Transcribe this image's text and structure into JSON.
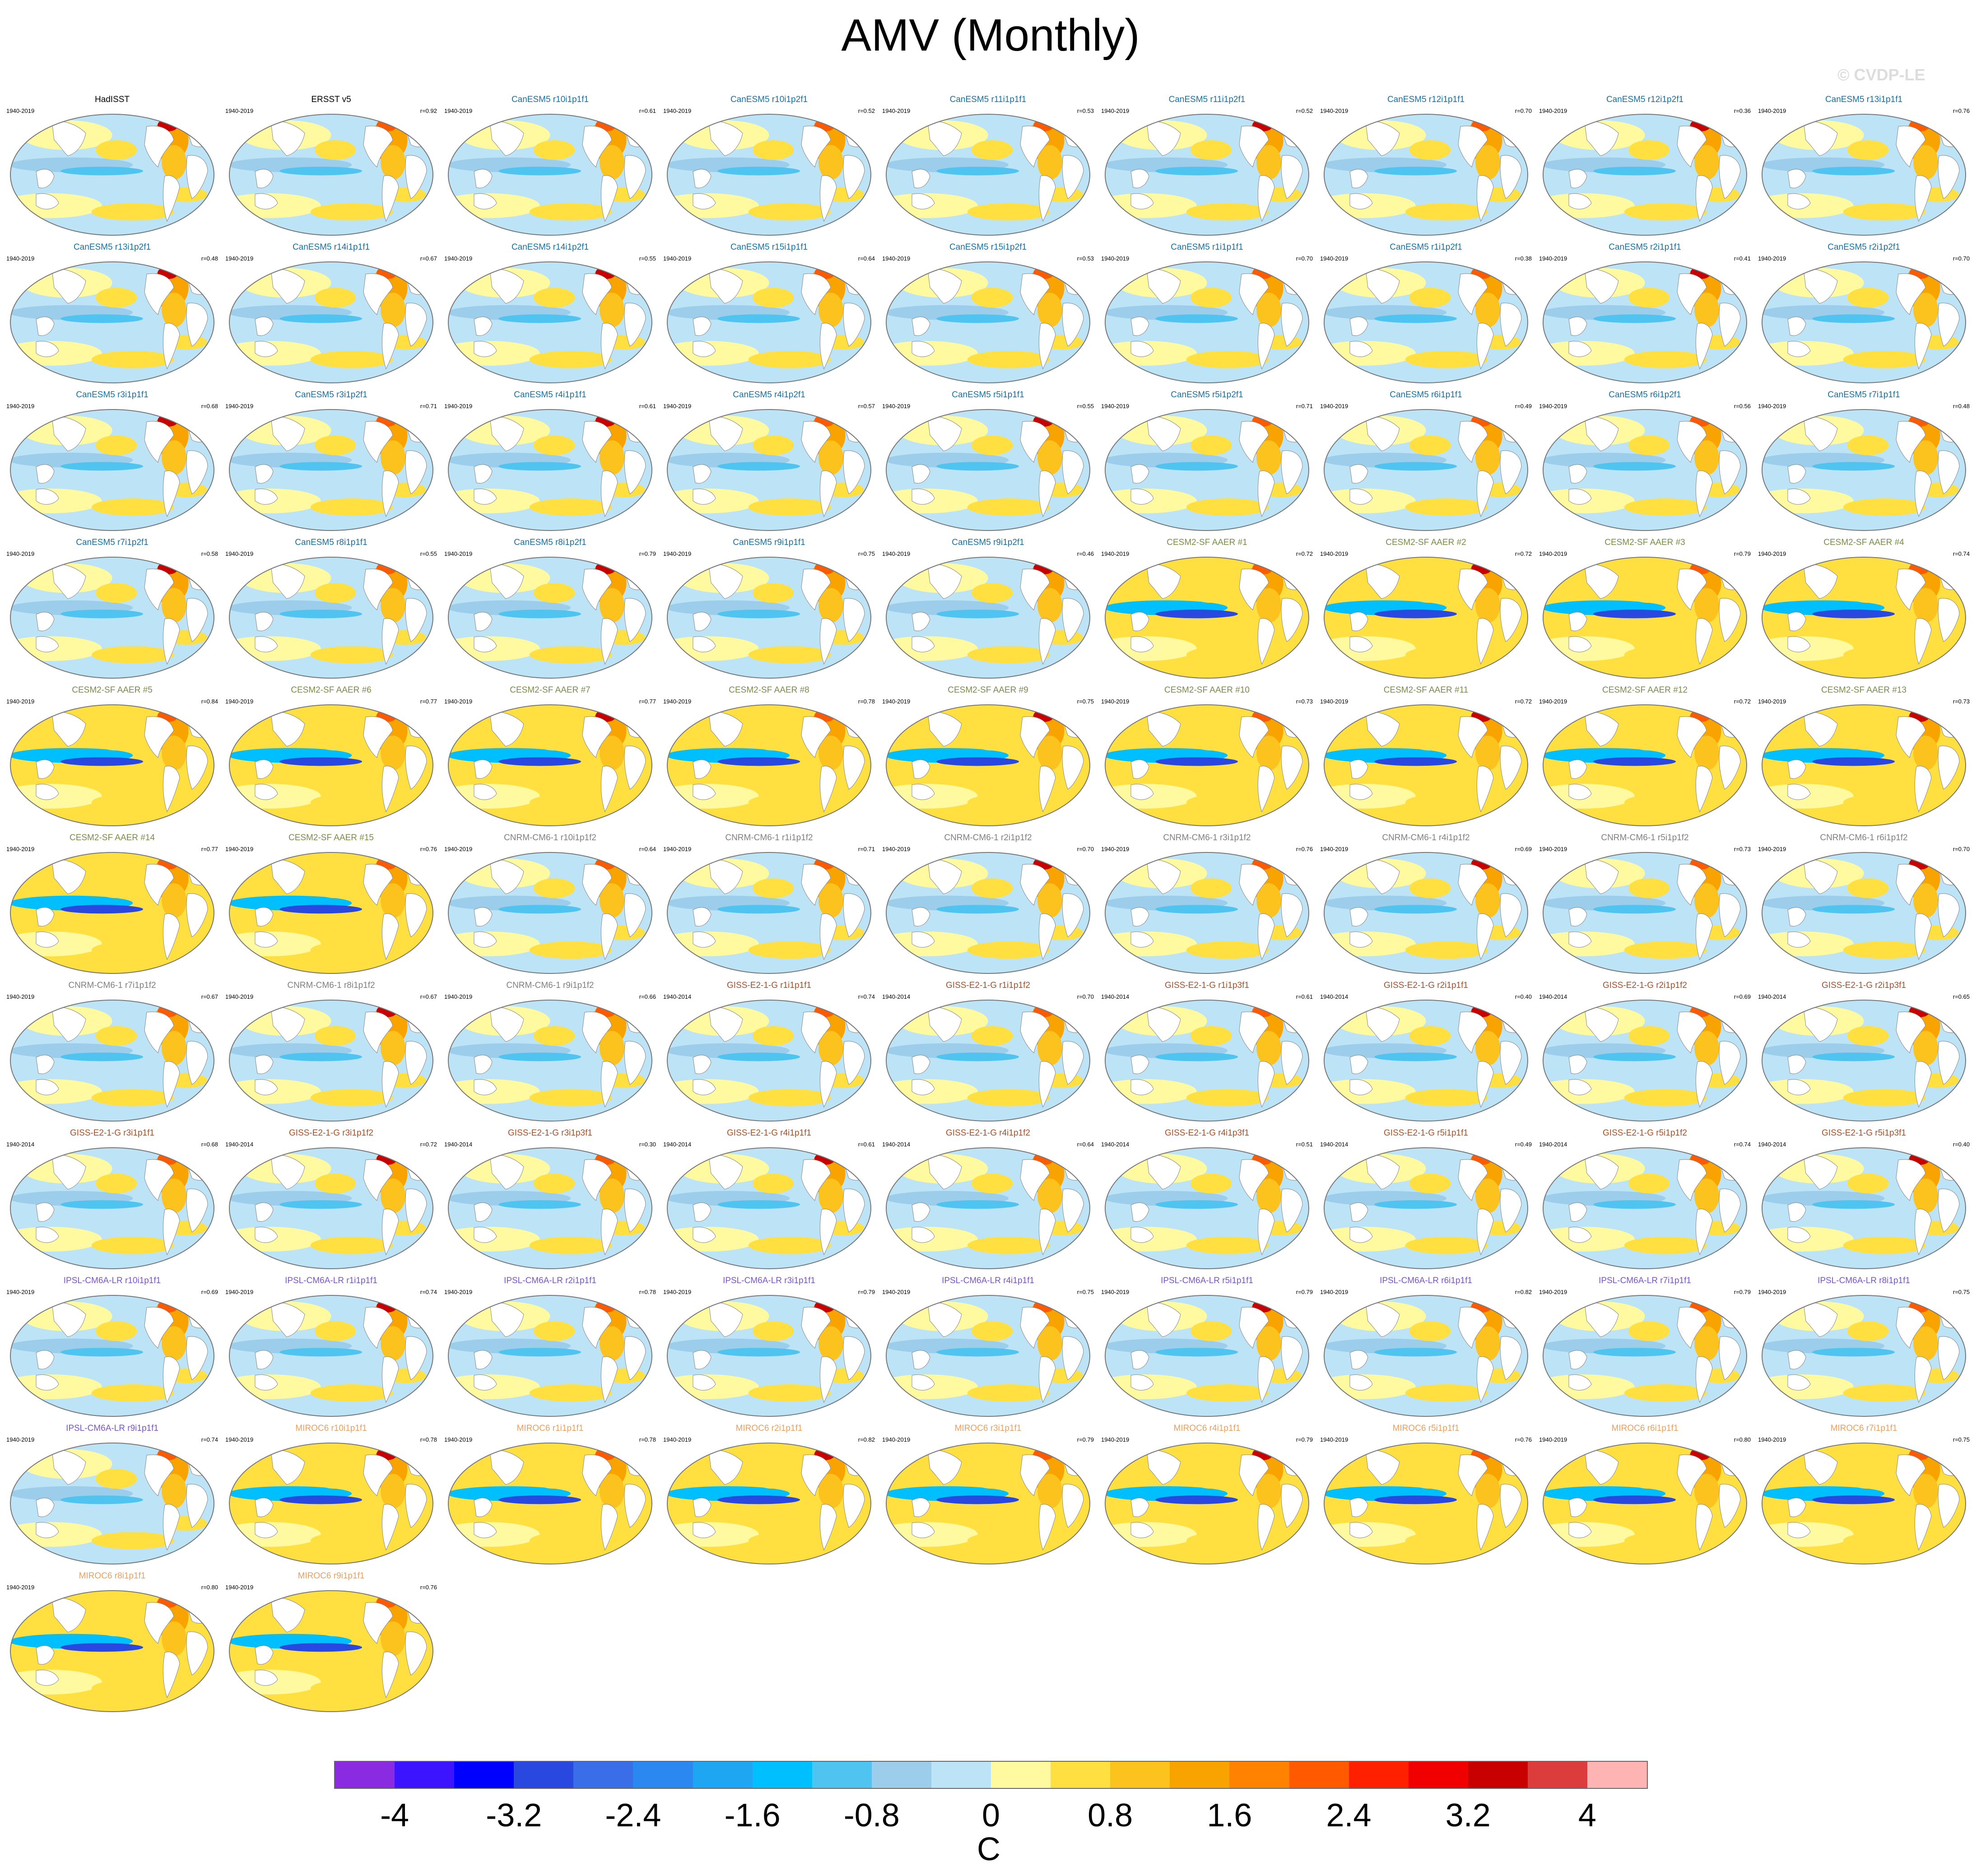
{
  "title": "AMV (Monthly)",
  "watermark": "© CVDP-LE",
  "group_colors": {
    "obs": "#000000",
    "CanESM5": "#1a6f9c",
    "CESM2-SF AAER": "#7a8c4a",
    "CNRM-CM6-1": "#808080",
    "GISS-E2-1-G": "#a0522d",
    "IPSL-CM6A-LR": "#7a55c8",
    "MIROC6": "#e8a060"
  },
  "icon": "world-map-icon",
  "chart_data": {
    "type": "heatmap",
    "title": "AMV (Monthly)",
    "colorbar": {
      "unit": "C",
      "ticks": [
        "-4",
        "-3.2",
        "-2.4",
        "-1.6",
        "-0.8",
        "0",
        "0.8",
        "1.6",
        "2.4",
        "3.2",
        "4"
      ],
      "colors": [
        "#8a2be2",
        "#3c14ff",
        "#0000ff",
        "#2848e0",
        "#3a6ee8",
        "#2a88f0",
        "#1ea6f2",
        "#00bfff",
        "#50c4f0",
        "#9ccdea",
        "#bde3f7",
        "#fffaa0",
        "#ffe040",
        "#fcc21e",
        "#f9a300",
        "#ff8200",
        "#ff5a00",
        "#ff2000",
        "#f00000",
        "#c80000",
        "#dc3c3c",
        "#ffb4b4"
      ]
    },
    "panels": [
      {
        "name": "HadISST",
        "group": "obs",
        "years": "1940-2019",
        "r": ""
      },
      {
        "name": "ERSST v5",
        "group": "obs",
        "years": "1940-2019",
        "r": "r=0.92"
      },
      {
        "name": "CanESM5 r10i1p1f1",
        "group": "CanESM5",
        "years": "1940-2019",
        "r": "r=0.61"
      },
      {
        "name": "CanESM5 r10i1p2f1",
        "group": "CanESM5",
        "years": "1940-2019",
        "r": "r=0.52"
      },
      {
        "name": "CanESM5 r11i1p1f1",
        "group": "CanESM5",
        "years": "1940-2019",
        "r": "r=0.53"
      },
      {
        "name": "CanESM5 r11i1p2f1",
        "group": "CanESM5",
        "years": "1940-2019",
        "r": "r=0.52"
      },
      {
        "name": "CanESM5 r12i1p1f1",
        "group": "CanESM5",
        "years": "1940-2019",
        "r": "r=0.70"
      },
      {
        "name": "CanESM5 r12i1p2f1",
        "group": "CanESM5",
        "years": "1940-2019",
        "r": "r=0.36"
      },
      {
        "name": "CanESM5 r13i1p1f1",
        "group": "CanESM5",
        "years": "1940-2019",
        "r": "r=0.76"
      },
      {
        "name": "CanESM5 r13i1p2f1",
        "group": "CanESM5",
        "years": "1940-2019",
        "r": "r=0.48"
      },
      {
        "name": "CanESM5 r14i1p1f1",
        "group": "CanESM5",
        "years": "1940-2019",
        "r": "r=0.67"
      },
      {
        "name": "CanESM5 r14i1p2f1",
        "group": "CanESM5",
        "years": "1940-2019",
        "r": "r=0.55"
      },
      {
        "name": "CanESM5 r15i1p1f1",
        "group": "CanESM5",
        "years": "1940-2019",
        "r": "r=0.64"
      },
      {
        "name": "CanESM5 r15i1p2f1",
        "group": "CanESM5",
        "years": "1940-2019",
        "r": "r=0.53"
      },
      {
        "name": "CanESM5 r1i1p1f1",
        "group": "CanESM5",
        "years": "1940-2019",
        "r": "r=0.70"
      },
      {
        "name": "CanESM5 r1i1p2f1",
        "group": "CanESM5",
        "years": "1940-2019",
        "r": "r=0.38"
      },
      {
        "name": "CanESM5 r2i1p1f1",
        "group": "CanESM5",
        "years": "1940-2019",
        "r": "r=0.41"
      },
      {
        "name": "CanESM5 r2i1p2f1",
        "group": "CanESM5",
        "years": "1940-2019",
        "r": "r=0.70"
      },
      {
        "name": "CanESM5 r3i1p1f1",
        "group": "CanESM5",
        "years": "1940-2019",
        "r": "r=0.68"
      },
      {
        "name": "CanESM5 r3i1p2f1",
        "group": "CanESM5",
        "years": "1940-2019",
        "r": "r=0.71"
      },
      {
        "name": "CanESM5 r4i1p1f1",
        "group": "CanESM5",
        "years": "1940-2019",
        "r": "r=0.61"
      },
      {
        "name": "CanESM5 r4i1p2f1",
        "group": "CanESM5",
        "years": "1940-2019",
        "r": "r=0.57"
      },
      {
        "name": "CanESM5 r5i1p1f1",
        "group": "CanESM5",
        "years": "1940-2019",
        "r": "r=0.55"
      },
      {
        "name": "CanESM5 r5i1p2f1",
        "group": "CanESM5",
        "years": "1940-2019",
        "r": "r=0.71"
      },
      {
        "name": "CanESM5 r6i1p1f1",
        "group": "CanESM5",
        "years": "1940-2019",
        "r": "r=0.49"
      },
      {
        "name": "CanESM5 r6i1p2f1",
        "group": "CanESM5",
        "years": "1940-2019",
        "r": "r=0.56"
      },
      {
        "name": "CanESM5 r7i1p1f1",
        "group": "CanESM5",
        "years": "1940-2019",
        "r": "r=0.48"
      },
      {
        "name": "CanESM5 r7i1p2f1",
        "group": "CanESM5",
        "years": "1940-2019",
        "r": "r=0.58"
      },
      {
        "name": "CanESM5 r8i1p1f1",
        "group": "CanESM5",
        "years": "1940-2019",
        "r": "r=0.55"
      },
      {
        "name": "CanESM5 r8i1p2f1",
        "group": "CanESM5",
        "years": "1940-2019",
        "r": "r=0.79"
      },
      {
        "name": "CanESM5 r9i1p1f1",
        "group": "CanESM5",
        "years": "1940-2019",
        "r": "r=0.75"
      },
      {
        "name": "CanESM5 r9i1p2f1",
        "group": "CanESM5",
        "years": "1940-2019",
        "r": "r=0.46"
      },
      {
        "name": "CESM2-SF AAER #1",
        "group": "CESM2-SF AAER",
        "years": "1940-2019",
        "r": "r=0.72"
      },
      {
        "name": "CESM2-SF AAER #2",
        "group": "CESM2-SF AAER",
        "years": "1940-2019",
        "r": "r=0.72"
      },
      {
        "name": "CESM2-SF AAER #3",
        "group": "CESM2-SF AAER",
        "years": "1940-2019",
        "r": "r=0.79"
      },
      {
        "name": "CESM2-SF AAER #4",
        "group": "CESM2-SF AAER",
        "years": "1940-2019",
        "r": "r=0.74"
      },
      {
        "name": "CESM2-SF AAER #5",
        "group": "CESM2-SF AAER",
        "years": "1940-2019",
        "r": "r=0.84"
      },
      {
        "name": "CESM2-SF AAER #6",
        "group": "CESM2-SF AAER",
        "years": "1940-2019",
        "r": "r=0.77"
      },
      {
        "name": "CESM2-SF AAER #7",
        "group": "CESM2-SF AAER",
        "years": "1940-2019",
        "r": "r=0.77"
      },
      {
        "name": "CESM2-SF AAER #8",
        "group": "CESM2-SF AAER",
        "years": "1940-2019",
        "r": "r=0.78"
      },
      {
        "name": "CESM2-SF AAER #9",
        "group": "CESM2-SF AAER",
        "years": "1940-2019",
        "r": "r=0.75"
      },
      {
        "name": "CESM2-SF AAER #10",
        "group": "CESM2-SF AAER",
        "years": "1940-2019",
        "r": "r=0.73"
      },
      {
        "name": "CESM2-SF AAER #11",
        "group": "CESM2-SF AAER",
        "years": "1940-2019",
        "r": "r=0.72"
      },
      {
        "name": "CESM2-SF AAER #12",
        "group": "CESM2-SF AAER",
        "years": "1940-2019",
        "r": "r=0.72"
      },
      {
        "name": "CESM2-SF AAER #13",
        "group": "CESM2-SF AAER",
        "years": "1940-2019",
        "r": "r=0.73"
      },
      {
        "name": "CESM2-SF AAER #14",
        "group": "CESM2-SF AAER",
        "years": "1940-2019",
        "r": "r=0.77"
      },
      {
        "name": "CESM2-SF AAER #15",
        "group": "CESM2-SF AAER",
        "years": "1940-2019",
        "r": "r=0.76"
      },
      {
        "name": "CNRM-CM6-1 r10i1p1f2",
        "group": "CNRM-CM6-1",
        "years": "1940-2019",
        "r": "r=0.64"
      },
      {
        "name": "CNRM-CM6-1 r1i1p1f2",
        "group": "CNRM-CM6-1",
        "years": "1940-2019",
        "r": "r=0.71"
      },
      {
        "name": "CNRM-CM6-1 r2i1p1f2",
        "group": "CNRM-CM6-1",
        "years": "1940-2019",
        "r": "r=0.70"
      },
      {
        "name": "CNRM-CM6-1 r3i1p1f2",
        "group": "CNRM-CM6-1",
        "years": "1940-2019",
        "r": "r=0.76"
      },
      {
        "name": "CNRM-CM6-1 r4i1p1f2",
        "group": "CNRM-CM6-1",
        "years": "1940-2019",
        "r": "r=0.69"
      },
      {
        "name": "CNRM-CM6-1 r5i1p1f2",
        "group": "CNRM-CM6-1",
        "years": "1940-2019",
        "r": "r=0.73"
      },
      {
        "name": "CNRM-CM6-1 r6i1p1f2",
        "group": "CNRM-CM6-1",
        "years": "1940-2019",
        "r": "r=0.70"
      },
      {
        "name": "CNRM-CM6-1 r7i1p1f2",
        "group": "CNRM-CM6-1",
        "years": "1940-2019",
        "r": "r=0.67"
      },
      {
        "name": "CNRM-CM6-1 r8i1p1f2",
        "group": "CNRM-CM6-1",
        "years": "1940-2019",
        "r": "r=0.67"
      },
      {
        "name": "CNRM-CM6-1 r9i1p1f2",
        "group": "CNRM-CM6-1",
        "years": "1940-2019",
        "r": "r=0.66"
      },
      {
        "name": "GISS-E2-1-G r1i1p1f1",
        "group": "GISS-E2-1-G",
        "years": "1940-2014",
        "r": "r=0.74"
      },
      {
        "name": "GISS-E2-1-G r1i1p1f2",
        "group": "GISS-E2-1-G",
        "years": "1940-2014",
        "r": "r=0.70"
      },
      {
        "name": "GISS-E2-1-G r1i1p3f1",
        "group": "GISS-E2-1-G",
        "years": "1940-2014",
        "r": "r=0.61"
      },
      {
        "name": "GISS-E2-1-G r2i1p1f1",
        "group": "GISS-E2-1-G",
        "years": "1940-2014",
        "r": "r=0.40"
      },
      {
        "name": "GISS-E2-1-G r2i1p1f2",
        "group": "GISS-E2-1-G",
        "years": "1940-2014",
        "r": "r=0.69"
      },
      {
        "name": "GISS-E2-1-G r2i1p3f1",
        "group": "GISS-E2-1-G",
        "years": "1940-2014",
        "r": "r=0.65"
      },
      {
        "name": "GISS-E2-1-G r3i1p1f1",
        "group": "GISS-E2-1-G",
        "years": "1940-2014",
        "r": "r=0.68"
      },
      {
        "name": "GISS-E2-1-G r3i1p1f2",
        "group": "GISS-E2-1-G",
        "years": "1940-2014",
        "r": "r=0.72"
      },
      {
        "name": "GISS-E2-1-G r3i1p3f1",
        "group": "GISS-E2-1-G",
        "years": "1940-2014",
        "r": "r=0.30"
      },
      {
        "name": "GISS-E2-1-G r4i1p1f1",
        "group": "GISS-E2-1-G",
        "years": "1940-2014",
        "r": "r=0.61"
      },
      {
        "name": "GISS-E2-1-G r4i1p1f2",
        "group": "GISS-E2-1-G",
        "years": "1940-2014",
        "r": "r=0.64"
      },
      {
        "name": "GISS-E2-1-G r4i1p3f1",
        "group": "GISS-E2-1-G",
        "years": "1940-2014",
        "r": "r=0.51"
      },
      {
        "name": "GISS-E2-1-G r5i1p1f1",
        "group": "GISS-E2-1-G",
        "years": "1940-2014",
        "r": "r=0.49"
      },
      {
        "name": "GISS-E2-1-G r5i1p1f2",
        "group": "GISS-E2-1-G",
        "years": "1940-2014",
        "r": "r=0.74"
      },
      {
        "name": "GISS-E2-1-G r5i1p3f1",
        "group": "GISS-E2-1-G",
        "years": "1940-2014",
        "r": "r=0.40"
      },
      {
        "name": "IPSL-CM6A-LR r10i1p1f1",
        "group": "IPSL-CM6A-LR",
        "years": "1940-2019",
        "r": "r=0.69"
      },
      {
        "name": "IPSL-CM6A-LR r1i1p1f1",
        "group": "IPSL-CM6A-LR",
        "years": "1940-2019",
        "r": "r=0.74"
      },
      {
        "name": "IPSL-CM6A-LR r2i1p1f1",
        "group": "IPSL-CM6A-LR",
        "years": "1940-2019",
        "r": "r=0.78"
      },
      {
        "name": "IPSL-CM6A-LR r3i1p1f1",
        "group": "IPSL-CM6A-LR",
        "years": "1940-2019",
        "r": "r=0.79"
      },
      {
        "name": "IPSL-CM6A-LR r4i1p1f1",
        "group": "IPSL-CM6A-LR",
        "years": "1940-2019",
        "r": "r=0.75"
      },
      {
        "name": "IPSL-CM6A-LR r5i1p1f1",
        "group": "IPSL-CM6A-LR",
        "years": "1940-2019",
        "r": "r=0.79"
      },
      {
        "name": "IPSL-CM6A-LR r6i1p1f1",
        "group": "IPSL-CM6A-LR",
        "years": "1940-2019",
        "r": "r=0.82"
      },
      {
        "name": "IPSL-CM6A-LR r7i1p1f1",
        "group": "IPSL-CM6A-LR",
        "years": "1940-2019",
        "r": "r=0.79"
      },
      {
        "name": "IPSL-CM6A-LR r8i1p1f1",
        "group": "IPSL-CM6A-LR",
        "years": "1940-2019",
        "r": "r=0.75"
      },
      {
        "name": "IPSL-CM6A-LR r9i1p1f1",
        "group": "IPSL-CM6A-LR",
        "years": "1940-2019",
        "r": "r=0.74"
      },
      {
        "name": "MIROC6 r10i1p1f1",
        "group": "MIROC6",
        "years": "1940-2019",
        "r": "r=0.78"
      },
      {
        "name": "MIROC6 r1i1p1f1",
        "group": "MIROC6",
        "years": "1940-2019",
        "r": "r=0.78"
      },
      {
        "name": "MIROC6 r2i1p1f1",
        "group": "MIROC6",
        "years": "1940-2019",
        "r": "r=0.82"
      },
      {
        "name": "MIROC6 r3i1p1f1",
        "group": "MIROC6",
        "years": "1940-2019",
        "r": "r=0.79"
      },
      {
        "name": "MIROC6 r4i1p1f1",
        "group": "MIROC6",
        "years": "1940-2019",
        "r": "r=0.79"
      },
      {
        "name": "MIROC6 r5i1p1f1",
        "group": "MIROC6",
        "years": "1940-2019",
        "r": "r=0.76"
      },
      {
        "name": "MIROC6 r6i1p1f1",
        "group": "MIROC6",
        "years": "1940-2019",
        "r": "r=0.80"
      },
      {
        "name": "MIROC6 r7i1p1f1",
        "group": "MIROC6",
        "years": "1940-2019",
        "r": "r=0.75"
      },
      {
        "name": "MIROC6 r8i1p1f1",
        "group": "MIROC6",
        "years": "1940-2019",
        "r": "r=0.80"
      },
      {
        "name": "MIROC6 r9i1p1f1",
        "group": "MIROC6",
        "years": "1940-2019",
        "r": "r=0.76"
      }
    ]
  }
}
